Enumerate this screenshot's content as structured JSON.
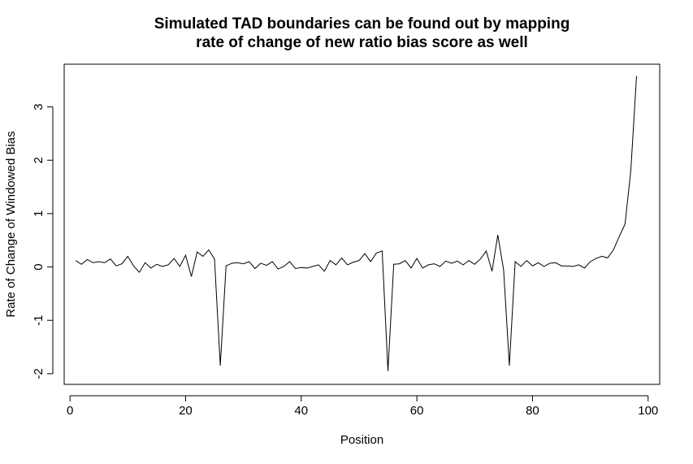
{
  "chart_data": {
    "type": "line",
    "title": [
      "Simulated TAD boundaries can be found out by mapping",
      "rate of change of new ratio bias score as well"
    ],
    "xlabel": "Position",
    "ylabel": "Rate of Change of Windowed Bias",
    "xlim": [
      -1,
      102
    ],
    "ylim": [
      -2.2,
      3.8
    ],
    "xticks": [
      0,
      20,
      40,
      60,
      80,
      100
    ],
    "yticks": [
      -2,
      -1,
      0,
      1,
      2,
      3
    ],
    "grid": false,
    "legend": "none",
    "line_color": "#000000",
    "x": [
      1,
      2,
      3,
      4,
      5,
      6,
      7,
      8,
      9,
      10,
      11,
      12,
      13,
      14,
      15,
      16,
      17,
      18,
      19,
      20,
      21,
      22,
      23,
      24,
      25,
      26,
      27,
      28,
      29,
      30,
      31,
      32,
      33,
      34,
      35,
      36,
      37,
      38,
      39,
      40,
      41,
      42,
      43,
      44,
      45,
      46,
      47,
      48,
      49,
      50,
      51,
      52,
      53,
      54,
      55,
      56,
      57,
      58,
      59,
      60,
      61,
      62,
      63,
      64,
      65,
      66,
      67,
      68,
      69,
      70,
      71,
      72,
      73,
      74,
      75,
      76,
      77,
      78,
      79,
      80,
      81,
      82,
      83,
      84,
      85,
      86,
      87,
      88,
      89,
      90,
      91,
      92,
      93,
      94,
      95,
      96,
      97,
      98
    ],
    "y": [
      0.12,
      0.05,
      0.14,
      0.08,
      0.1,
      0.08,
      0.15,
      0.02,
      0.06,
      0.2,
      0.02,
      -0.1,
      0.08,
      -0.02,
      0.05,
      0.01,
      0.04,
      0.16,
      0.01,
      0.22,
      -0.18,
      0.28,
      0.2,
      0.32,
      0.15,
      -1.85,
      0.02,
      0.07,
      0.08,
      0.06,
      0.1,
      -0.03,
      0.07,
      0.03,
      0.1,
      -0.04,
      0.01,
      0.1,
      -0.03,
      -0.01,
      -0.02,
      0.01,
      0.04,
      -0.08,
      0.12,
      0.04,
      0.17,
      0.04,
      0.09,
      0.12,
      0.25,
      0.1,
      0.26,
      0.3,
      -1.95,
      0.05,
      0.06,
      0.12,
      -0.02,
      0.16,
      -0.02,
      0.04,
      0.06,
      0.01,
      0.11,
      0.07,
      0.11,
      0.04,
      0.12,
      0.05,
      0.15,
      0.3,
      -0.08,
      0.6,
      -0.05,
      -1.85,
      0.1,
      0.01,
      0.12,
      0.02,
      0.08,
      0.01,
      0.07,
      0.08,
      0.02,
      0.02,
      0.01,
      0.04,
      -0.02,
      0.1,
      0.16,
      0.2,
      0.17,
      0.32,
      0.57,
      0.8,
      1.8,
      3.58
    ]
  }
}
